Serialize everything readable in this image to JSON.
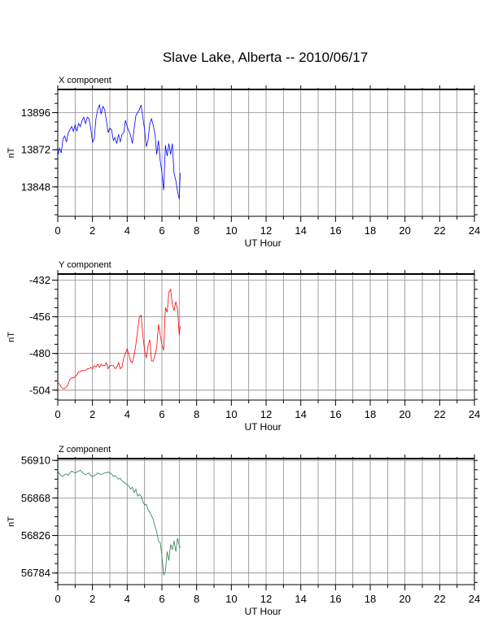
{
  "page": {
    "title": "Slave Lake, Alberta -- 2010/06/17"
  },
  "chart_data": [
    {
      "type": "line",
      "panel_title": "X component",
      "xlabel": "UT Hour",
      "ylabel": "nT",
      "xlim": [
        0,
        24
      ],
      "ylim": [
        13829,
        13911
      ],
      "xticks": [
        0,
        2,
        4,
        6,
        8,
        10,
        12,
        14,
        16,
        18,
        20,
        22,
        24
      ],
      "yticks": [
        13848,
        13872,
        13896
      ],
      "grid": true,
      "series": [
        {
          "color": "#0000ff",
          "x": [
            0.0,
            0.1,
            0.2,
            0.3,
            0.4,
            0.5,
            0.6,
            0.7,
            0.8,
            0.9,
            1.0,
            1.1,
            1.2,
            1.3,
            1.4,
            1.5,
            1.6,
            1.7,
            1.8,
            1.9,
            2.0,
            2.1,
            2.2,
            2.3,
            2.4,
            2.5,
            2.6,
            2.7,
            2.8,
            2.9,
            3.0,
            3.1,
            3.2,
            3.3,
            3.4,
            3.5,
            3.6,
            3.7,
            3.8,
            3.9,
            4.0,
            4.1,
            4.2,
            4.3,
            4.4,
            4.5,
            4.6,
            4.7,
            4.8,
            4.9,
            5.0,
            5.1,
            5.2,
            5.3,
            5.4,
            5.5,
            5.6,
            5.7,
            5.8,
            5.9,
            6.0,
            6.1,
            6.2,
            6.3,
            6.4,
            6.5,
            6.6,
            6.7,
            6.8,
            6.9,
            7.0,
            7.05
          ],
          "values": [
            13868,
            13873,
            13870,
            13879,
            13881,
            13877,
            13883,
            13885,
            13887,
            13884,
            13888,
            13884,
            13889,
            13887,
            13891,
            13893,
            13889,
            13893,
            13892,
            13886,
            13877,
            13879,
            13892,
            13898,
            13901,
            13895,
            13900,
            13898,
            13891,
            13883,
            13886,
            13885,
            13878,
            13880,
            13876,
            13882,
            13877,
            13882,
            13883,
            13891,
            13887,
            13884,
            13881,
            13876,
            13886,
            13894,
            13896,
            13898,
            13901,
            13893,
            13885,
            13874,
            13878,
            13889,
            13892,
            13888,
            13882,
            13869,
            13878,
            13865,
            13857,
            13846,
            13875,
            13868,
            13876,
            13869,
            13876,
            13857,
            13852,
            13845,
            13840,
            13857
          ]
        }
      ]
    },
    {
      "type": "line",
      "panel_title": "Y component",
      "xlabel": "UT Hour",
      "ylabel": "nT",
      "xlim": [
        0,
        24
      ],
      "ylim": [
        -510.5,
        -428
      ],
      "xticks": [
        0,
        2,
        4,
        6,
        8,
        10,
        12,
        14,
        16,
        18,
        20,
        22,
        24
      ],
      "yticks": [
        -504,
        -480,
        -456,
        -432
      ],
      "grid": true,
      "series": [
        {
          "color": "#ff0000",
          "x": [
            0.0,
            0.1,
            0.2,
            0.3,
            0.4,
            0.5,
            0.6,
            0.7,
            0.8,
            0.9,
            1.0,
            1.1,
            1.2,
            1.3,
            1.4,
            1.5,
            1.6,
            1.7,
            1.8,
            1.9,
            2.0,
            2.1,
            2.2,
            2.3,
            2.4,
            2.5,
            2.6,
            2.7,
            2.8,
            2.9,
            3.0,
            3.1,
            3.2,
            3.3,
            3.4,
            3.5,
            3.6,
            3.7,
            3.8,
            3.9,
            4.0,
            4.1,
            4.2,
            4.3,
            4.4,
            4.5,
            4.6,
            4.7,
            4.8,
            4.9,
            5.0,
            5.1,
            5.2,
            5.3,
            5.4,
            5.5,
            5.6,
            5.7,
            5.8,
            5.9,
            6.0,
            6.1,
            6.2,
            6.3,
            6.4,
            6.5,
            6.6,
            6.7,
            6.8,
            6.9,
            7.0,
            7.05
          ],
          "values": [
            -499,
            -500,
            -502,
            -503,
            -503,
            -502,
            -500,
            -497,
            -496,
            -496,
            -495,
            -494,
            -492,
            -492,
            -491,
            -491,
            -491,
            -490,
            -490,
            -489,
            -490,
            -488,
            -489,
            -487,
            -489,
            -487,
            -488,
            -488,
            -486,
            -490,
            -488,
            -488,
            -488,
            -490,
            -489,
            -486,
            -490,
            -489,
            -483,
            -480,
            -477,
            -481,
            -485,
            -486,
            -481,
            -474,
            -465,
            -456,
            -455,
            -468,
            -478,
            -483,
            -475,
            -471,
            -485,
            -485,
            -481,
            -476,
            -461,
            -468,
            -474,
            -478,
            -450,
            -453,
            -440,
            -438,
            -448,
            -452,
            -446,
            -451,
            -468,
            -462
          ]
        }
      ]
    },
    {
      "type": "line",
      "panel_title": "Z component",
      "xlabel": "UT Hour",
      "ylabel": "nT",
      "xlim": [
        0,
        24
      ],
      "ylim": [
        56771,
        56912
      ],
      "xticks": [
        0,
        2,
        4,
        6,
        8,
        10,
        12,
        14,
        16,
        18,
        20,
        22,
        24
      ],
      "yticks": [
        56784,
        56826,
        56868,
        56910
      ],
      "grid": true,
      "series": [
        {
          "color": "#2e7d4f",
          "x": [
            0.0,
            0.1,
            0.2,
            0.3,
            0.4,
            0.5,
            0.6,
            0.7,
            0.8,
            0.9,
            1.0,
            1.1,
            1.2,
            1.3,
            1.4,
            1.5,
            1.6,
            1.7,
            1.8,
            1.9,
            2.0,
            2.1,
            2.2,
            2.3,
            2.4,
            2.5,
            2.6,
            2.7,
            2.8,
            2.9,
            3.0,
            3.1,
            3.2,
            3.3,
            3.4,
            3.5,
            3.6,
            3.7,
            3.8,
            3.9,
            4.0,
            4.1,
            4.2,
            4.3,
            4.4,
            4.5,
            4.6,
            4.7,
            4.8,
            4.9,
            5.0,
            5.1,
            5.2,
            5.3,
            5.4,
            5.5,
            5.6,
            5.7,
            5.8,
            5.9,
            6.0,
            6.1,
            6.2,
            6.3,
            6.4,
            6.5,
            6.6,
            6.7,
            6.8,
            6.9,
            7.0,
            7.05
          ],
          "values": [
            56898,
            56895,
            56893,
            56892,
            56894,
            56895,
            56893,
            56896,
            56898,
            56897,
            56896,
            56897,
            56898,
            56899,
            56897,
            56895,
            56894,
            56895,
            56896,
            56893,
            56892,
            56893,
            56894,
            56896,
            56895,
            56894,
            56895,
            56896,
            56896,
            56897,
            56896,
            56895,
            56892,
            56893,
            56891,
            56889,
            56890,
            56887,
            56886,
            56884,
            56883,
            56881,
            56878,
            56880,
            56874,
            56878,
            56870,
            56872,
            56870,
            56864,
            56860,
            56861,
            56855,
            56852,
            56848,
            56844,
            56836,
            56830,
            56820,
            56818,
            56803,
            56782,
            56786,
            56808,
            56798,
            56816,
            56810,
            56820,
            56808,
            56823,
            56815,
            56812
          ]
        }
      ]
    }
  ]
}
